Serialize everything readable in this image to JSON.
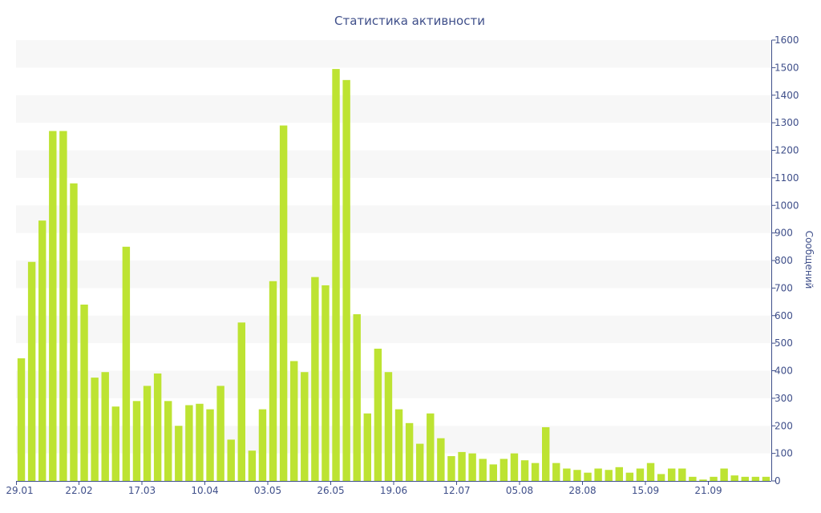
{
  "chart_data": {
    "type": "bar",
    "title": "Статистика активности",
    "ylabel": "Сообщений",
    "ylim": [
      0,
      1600
    ],
    "y_ticks": [
      0,
      100,
      200,
      300,
      400,
      500,
      600,
      700,
      800,
      900,
      1000,
      1100,
      1200,
      1300,
      1400,
      1500,
      1600
    ],
    "y_axis_side": "right",
    "grid": "alternating horizontal bands",
    "bar_color": "#bde332",
    "band_color": "#f7f7f7",
    "text_color": "#3f4f8a",
    "x_tick_labels": [
      {
        "label": "29.01",
        "index": 0
      },
      {
        "label": "22.02",
        "index": 6
      },
      {
        "label": "17.03",
        "index": 12
      },
      {
        "label": "10.04",
        "index": 18
      },
      {
        "label": "03.05",
        "index": 24
      },
      {
        "label": "26.05",
        "index": 30
      },
      {
        "label": "19.06",
        "index": 36
      },
      {
        "label": "12.07",
        "index": 42
      },
      {
        "label": "05.08",
        "index": 48
      },
      {
        "label": "28.08",
        "index": 54
      },
      {
        "label": "15.09",
        "index": 60
      },
      {
        "label": "21.09",
        "index": 66
      }
    ],
    "values": [
      445,
      795,
      945,
      1270,
      1270,
      1080,
      640,
      375,
      395,
      270,
      850,
      290,
      345,
      390,
      290,
      200,
      275,
      280,
      260,
      345,
      150,
      575,
      110,
      260,
      725,
      1290,
      435,
      395,
      740,
      710,
      1495,
      1455,
      605,
      245,
      480,
      395,
      260,
      210,
      135,
      245,
      155,
      90,
      105,
      100,
      80,
      60,
      80,
      100,
      75,
      65,
      195,
      65,
      45,
      40,
      30,
      45,
      40,
      50,
      30,
      45,
      65,
      25,
      45,
      45,
      15,
      5,
      15,
      45,
      20,
      15,
      15,
      15
    ]
  }
}
